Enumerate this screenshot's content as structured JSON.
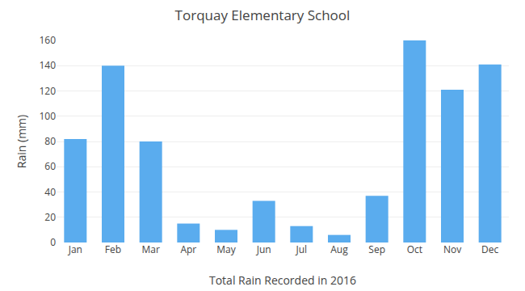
{
  "chart_data": {
    "type": "bar",
    "title": "Torquay Elementary School",
    "xlabel": "Total Rain Recorded in 2016",
    "ylabel": "Rain (mm)",
    "categories": [
      "Jan",
      "Feb",
      "Mar",
      "Apr",
      "May",
      "Jun",
      "Jul",
      "Aug",
      "Sep",
      "Oct",
      "Nov",
      "Dec"
    ],
    "values": [
      82,
      140,
      80,
      15,
      10,
      33,
      13,
      6,
      37,
      160,
      121,
      141
    ],
    "color": "#5aacee",
    "ylim": [
      0,
      160
    ],
    "yticks": [
      0,
      20,
      40,
      60,
      80,
      100,
      120,
      140,
      160
    ],
    "grid": true
  }
}
